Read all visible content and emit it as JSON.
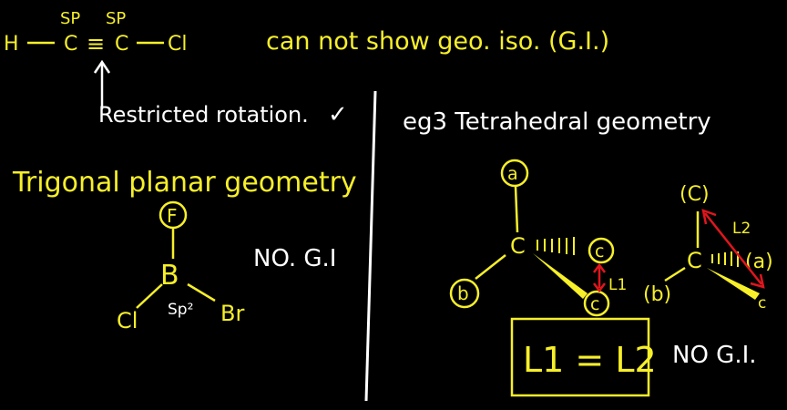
{
  "alkyne": {
    "atom_h": "H",
    "atom_c1": "C",
    "atom_c2": "C",
    "atom_cl": "Cl",
    "hyb_1": "SP",
    "hyb_2": "SP",
    "triple_bond": "≡",
    "statement": "can not show geo. iso. (G.I.)",
    "note": "Restricted rotation.",
    "check": "✓"
  },
  "trigonal": {
    "heading": "Trigonal planar geometry",
    "center": "B",
    "top": "F",
    "left": "Cl",
    "right": "Br",
    "hybrid": "Sp²",
    "result": "NO. G.I"
  },
  "tetrahedral": {
    "heading": "eg3 Tetrahedral geometry",
    "mol1": {
      "center": "C",
      "top": "a",
      "left": "b",
      "right": "c",
      "bottom": "c",
      "length_label": "L1"
    },
    "mol2": {
      "center": "C",
      "top": "(C)",
      "left": "(b)",
      "right": "(a)",
      "wedge_end": "c",
      "length_label": "L2"
    },
    "equation": "L1 = L2",
    "result": "NO G.I."
  },
  "colors": {
    "background": "#000000",
    "yellow_ink": "#f6ef2a",
    "white_ink": "#ffffff",
    "red_ink": "#e0161d"
  }
}
